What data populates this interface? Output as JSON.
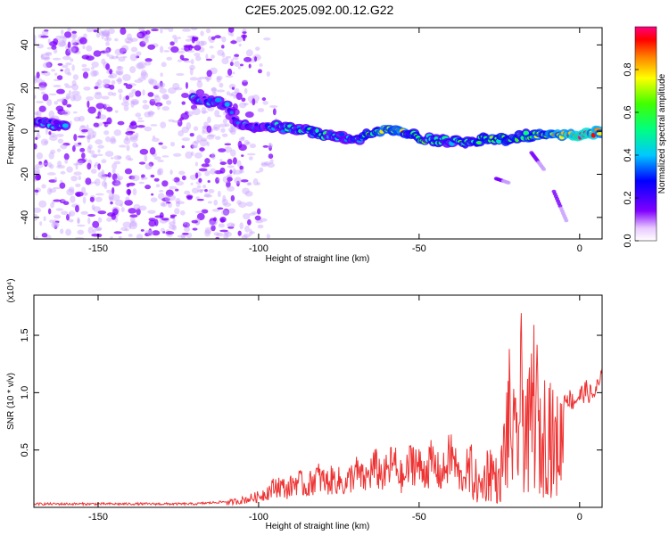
{
  "title": "C2E5.2025.092.00.12.G22",
  "colors": {
    "snr_line": "#ee3333",
    "spec_low": "#8000ff",
    "spec_high": "#ff0000"
  },
  "chart_data": [
    {
      "type": "heatmap",
      "name": "spectrogram",
      "xlabel": "Height of straight line (km)",
      "ylabel": "Frequency (Hz)",
      "xlim": [
        -170,
        7
      ],
      "ylim": [
        -50,
        48
      ],
      "xticks": [
        "-150",
        "-100",
        "-50",
        "0"
      ],
      "xtick_values": [
        -150,
        -100,
        -50,
        0
      ],
      "yticks": [
        "40",
        "20",
        "0",
        "-20",
        "-40"
      ],
      "ytick_values": [
        40,
        20,
        0,
        -20,
        -40
      ],
      "colorbar": {
        "label": "Normalized spectral amplitude",
        "range": [
          0,
          1
        ],
        "ticks": [
          "0.0",
          "0.2",
          "0.4",
          "0.6",
          "0.8"
        ],
        "tick_values": [
          0.0,
          0.2,
          0.4,
          0.6,
          0.8
        ],
        "colormap": "rainbow"
      },
      "noise_region": {
        "x_range": [
          -170,
          -100
        ],
        "freq_range": [
          -50,
          48
        ]
      },
      "signal_track": [
        {
          "x": -170,
          "freq": 4,
          "amp": 0.4
        },
        {
          "x": -163,
          "freq": 3,
          "amp": 0.3
        },
        {
          "x": -118,
          "freq": 15,
          "amp": 0.35
        },
        {
          "x": -110,
          "freq": 12,
          "amp": 0.3
        },
        {
          "x": -107,
          "freq": 3,
          "amp": 0.35
        },
        {
          "x": -95,
          "freq": 2,
          "amp": 0.4
        },
        {
          "x": -85,
          "freq": 0,
          "amp": 0.45
        },
        {
          "x": -70,
          "freq": -4,
          "amp": 0.4
        },
        {
          "x": -60,
          "freq": 1,
          "amp": 0.75
        },
        {
          "x": -50,
          "freq": -3,
          "amp": 0.6
        },
        {
          "x": -40,
          "freq": -5,
          "amp": 0.5
        },
        {
          "x": -30,
          "freq": -4,
          "amp": 0.6
        },
        {
          "x": -20,
          "freq": -3,
          "amp": 0.55
        },
        {
          "x": -10,
          "freq": -1,
          "amp": 0.7
        },
        {
          "x": 0,
          "freq": -2,
          "amp": 0.95
        },
        {
          "x": 7,
          "freq": 0,
          "amp": 0.8
        }
      ],
      "side_traces": [
        {
          "x_start": -15,
          "freq_start": -10,
          "x_end": -11,
          "freq_end": -18
        },
        {
          "x_start": -8,
          "freq_start": -28,
          "x_end": -4,
          "freq_end": -42
        },
        {
          "x_start": -26,
          "freq_start": -22,
          "x_end": -22,
          "freq_end": -24
        }
      ]
    },
    {
      "type": "line",
      "name": "snr",
      "xlabel": "Height of straight line (km)",
      "ylabel": "SNR (10 * v/v)",
      "scale_label": "(x10⁴)",
      "xlim": [
        -170,
        7
      ],
      "ylim": [
        0,
        1.85
      ],
      "xticks": [
        "-150",
        "-100",
        "-50",
        "0"
      ],
      "xtick_values": [
        -150,
        -100,
        -50,
        0
      ],
      "yticks": [
        "1.5",
        "1.0",
        "0.5"
      ],
      "ytick_values": [
        1.5,
        1.0,
        0.5
      ],
      "series": [
        {
          "x": [
            -170,
            -165,
            -160,
            -155,
            -150,
            -145,
            -140,
            -135,
            -130,
            -125,
            -120,
            -115,
            -110,
            -105,
            -100,
            -97,
            -94,
            -91,
            -88,
            -85,
            -82,
            -79,
            -76,
            -73,
            -70,
            -67,
            -64,
            -61,
            -58,
            -55,
            -52,
            -49,
            -46,
            -43,
            -40,
            -37,
            -34,
            -31,
            -28,
            -25,
            -22,
            -20,
            -18,
            -16,
            -14,
            -12,
            -10,
            -8,
            -6,
            -4,
            -2,
            0,
            2,
            4,
            7
          ],
          "y": [
            0.03,
            0.03,
            0.03,
            0.03,
            0.03,
            0.03,
            0.03,
            0.03,
            0.03,
            0.03,
            0.03,
            0.04,
            0.05,
            0.08,
            0.12,
            0.18,
            0.25,
            0.2,
            0.3,
            0.22,
            0.35,
            0.28,
            0.32,
            0.25,
            0.4,
            0.3,
            0.45,
            0.35,
            0.5,
            0.3,
            0.55,
            0.4,
            0.5,
            0.35,
            0.6,
            0.3,
            0.5,
            0.25,
            0.55,
            0.3,
            1.2,
            0.8,
            1.5,
            0.9,
            1.6,
            0.7,
            1.3,
            0.8,
            0.9,
            1.0,
            0.95,
            1.0,
            1.05,
            1.0,
            1.15
          ]
        }
      ]
    }
  ]
}
